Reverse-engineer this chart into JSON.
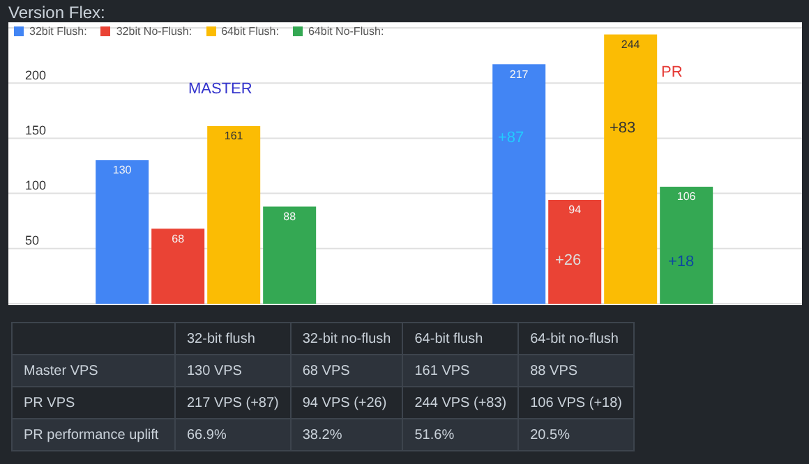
{
  "chart_data": [
    {
      "type": "bar",
      "title": "Version Flex:",
      "categories": [
        null,
        null
      ],
      "series": [
        {
          "name": "32bit Flush:",
          "color": "#4285f4",
          "values": [
            130,
            217
          ]
        },
        {
          "name": "32bit No-Flush:",
          "color": "#ea4335",
          "values": [
            68,
            94
          ]
        },
        {
          "name": "64bit Flush:",
          "color": "#fbbc04",
          "values": [
            161,
            244
          ]
        },
        {
          "name": "64bit No-Flush:",
          "color": "#34a853",
          "values": [
            88,
            106
          ]
        }
      ],
      "ylim": [
        0,
        250
      ],
      "yticks": [
        50,
        100,
        150,
        200
      ],
      "grid": "y",
      "legend": "top left",
      "data_labels": true,
      "annotations": [
        "MASTER",
        "PR",
        "+87",
        "+26",
        "+83",
        "+18"
      ]
    },
    {
      "type": "other",
      "categories": [
        "32-bit flush",
        "32-bit no-flush",
        "64-bit flush",
        "64-bit no-flush"
      ],
      "y_categories": [
        "Master VPS",
        "PR VPS",
        "PR performance uplift"
      ],
      "cell_labels": [
        [
          "130 VPS",
          "68 VPS",
          "161 VPS",
          "88 VPS"
        ],
        [
          "217 VPS (+87)",
          "94 VPS (+26)",
          "244 VPS (+83)",
          "106 VPS (+18)"
        ],
        [
          "66.9%",
          "38.2%",
          "51.6%",
          "20.5%"
        ]
      ]
    }
  ]
}
